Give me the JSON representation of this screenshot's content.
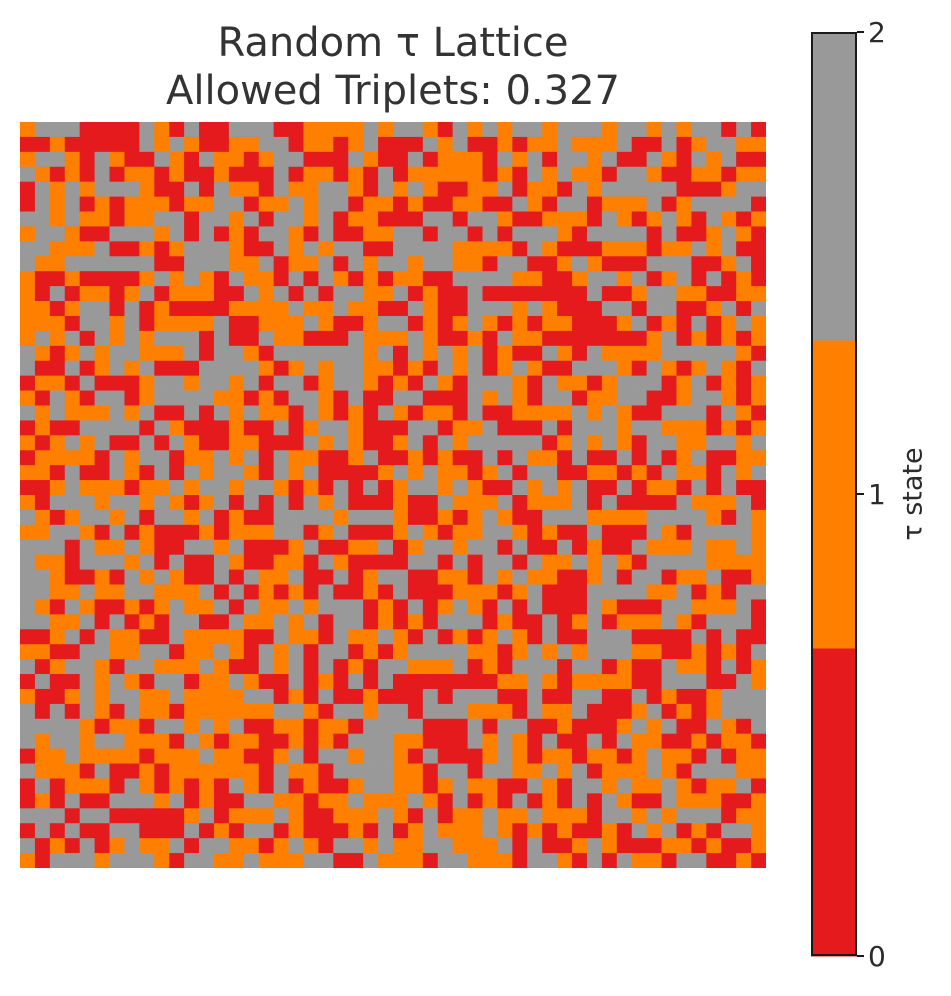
{
  "chart_data": {
    "type": "heatmap",
    "title": "Random τ Lattice",
    "subtitle": "Allowed Triplets: 0.327",
    "rows": 50,
    "cols": 50,
    "vmin": 0,
    "vmax": 2,
    "seed": 327,
    "colors": [
      "#e41a1c",
      "#ff7f00",
      "#999999"
    ],
    "colorbar": {
      "label": "τ state",
      "ticks": [
        "0",
        "1",
        "2"
      ]
    },
    "grid": false
  }
}
